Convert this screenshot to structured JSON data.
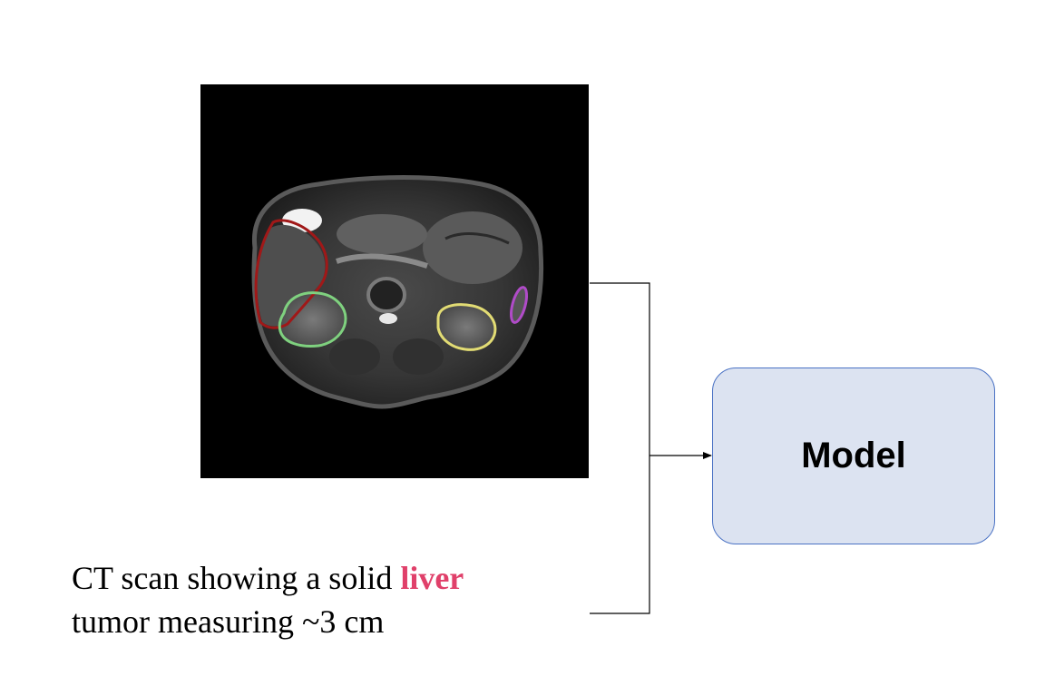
{
  "scan": {
    "overlays": [
      {
        "organ_icon": "liver-outline",
        "color": "#a01818"
      },
      {
        "organ_icon": "right-kidney-outline",
        "color": "#7fd17f"
      },
      {
        "organ_icon": "left-kidney-outline",
        "color": "#e2dc74"
      },
      {
        "organ_icon": "spleen-outline",
        "color": "#b04bc8"
      }
    ]
  },
  "model": {
    "label": "Model",
    "fill_color": "#dce3f1",
    "border_color": "#4a72c4"
  },
  "caption": {
    "line1_prefix": "CT scan showing a solid ",
    "line1_highlight": "liver",
    "line2": "tumor measuring ~3 cm",
    "highlight_color": "#e0406a"
  }
}
